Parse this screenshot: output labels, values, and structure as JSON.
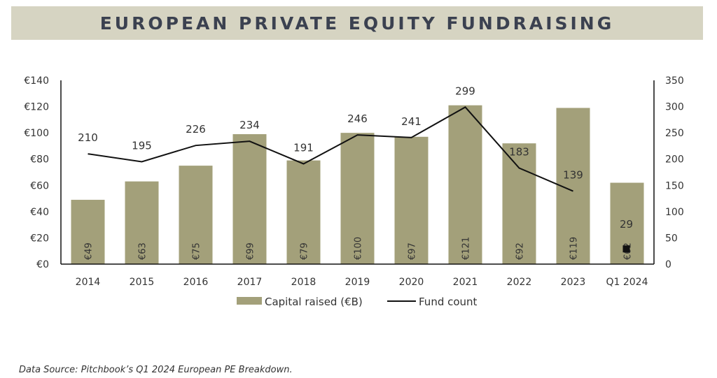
{
  "title": "EUROPEAN PRIVATE EQUITY FUNDRAISING",
  "source": "Data Source:  Pitchbook’s Q1 2024 European PE Breakdown.",
  "colors": {
    "bar": "#a3a07a",
    "line": "#111111",
    "banner": "#d6d4c2",
    "title": "#3b4150"
  },
  "chart_data": {
    "type": "bar",
    "categories": [
      "2014",
      "2015",
      "2016",
      "2017",
      "2018",
      "2019",
      "2020",
      "2021",
      "2022",
      "2023",
      "Q1 2024"
    ],
    "series": [
      {
        "name": "Capital raised (€B)",
        "type": "bar",
        "axis": "left",
        "values": [
          49,
          63,
          75,
          99,
          79,
          100,
          97,
          121,
          92,
          119,
          62
        ],
        "labels": [
          "€49",
          "€63",
          "€75",
          "€99",
          "€79",
          "€100",
          "€97",
          "€121",
          "€92",
          "€119",
          "€62"
        ]
      },
      {
        "name": "Fund count",
        "type": "line",
        "axis": "right",
        "values": [
          210,
          195,
          226,
          234,
          191,
          246,
          241,
          299,
          183,
          139,
          29
        ],
        "labels": [
          "210",
          "195",
          "226",
          "234",
          "191",
          "246",
          "241",
          "299",
          "183",
          "139",
          "29"
        ],
        "q1_marker": "square"
      }
    ],
    "left_axis": {
      "ylim": [
        0,
        140
      ],
      "ticks": [
        "€0",
        "€20",
        "€40",
        "€60",
        "€80",
        "€100",
        "€120",
        "€140"
      ]
    },
    "right_axis": {
      "ylim": [
        0,
        350
      ],
      "ticks": [
        "0",
        "50",
        "100",
        "150",
        "200",
        "250",
        "300",
        "350"
      ]
    },
    "legend": {
      "placement": "bottom",
      "entries": [
        "Capital raised (€B)",
        "Fund count"
      ]
    },
    "grid": false
  }
}
